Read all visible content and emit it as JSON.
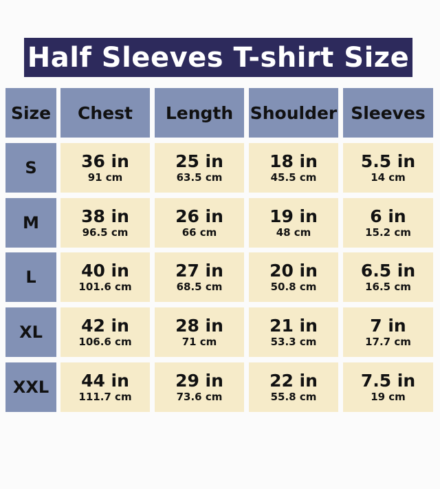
{
  "title": "Half Sleeves T-shirt Size",
  "colors": {
    "banner": "#2d2a5c",
    "header": "#8291b5",
    "cell": "#f6ebc9"
  },
  "headers": [
    "Size",
    "Chest",
    "Length",
    "Shoulder",
    "Sleeves"
  ],
  "rows": [
    {
      "size": "S",
      "values": [
        {
          "in": "36 in",
          "cm": "91 cm"
        },
        {
          "in": "25 in",
          "cm": "63.5 cm"
        },
        {
          "in": "18 in",
          "cm": "45.5 cm"
        },
        {
          "in": "5.5 in",
          "cm": "14 cm"
        }
      ]
    },
    {
      "size": "M",
      "values": [
        {
          "in": "38 in",
          "cm": "96.5 cm"
        },
        {
          "in": "26 in",
          "cm": "66 cm"
        },
        {
          "in": "19 in",
          "cm": "48 cm"
        },
        {
          "in": "6 in",
          "cm": "15.2 cm"
        }
      ]
    },
    {
      "size": "L",
      "values": [
        {
          "in": "40 in",
          "cm": "101.6 cm"
        },
        {
          "in": "27 in",
          "cm": "68.5 cm"
        },
        {
          "in": "20 in",
          "cm": "50.8 cm"
        },
        {
          "in": "6.5 in",
          "cm": "16.5 cm"
        }
      ]
    },
    {
      "size": "XL",
      "values": [
        {
          "in": "42 in",
          "cm": "106.6 cm"
        },
        {
          "in": "28 in",
          "cm": "71 cm"
        },
        {
          "in": "21 in",
          "cm": "53.3 cm"
        },
        {
          "in": "7 in",
          "cm": "17.7 cm"
        }
      ]
    },
    {
      "size": "XXL",
      "values": [
        {
          "in": "44 in",
          "cm": "111.7 cm"
        },
        {
          "in": "29 in",
          "cm": "73.6 cm"
        },
        {
          "in": "22 in",
          "cm": "55.8 cm"
        },
        {
          "in": "7.5 in",
          "cm": "19 cm"
        }
      ]
    }
  ]
}
